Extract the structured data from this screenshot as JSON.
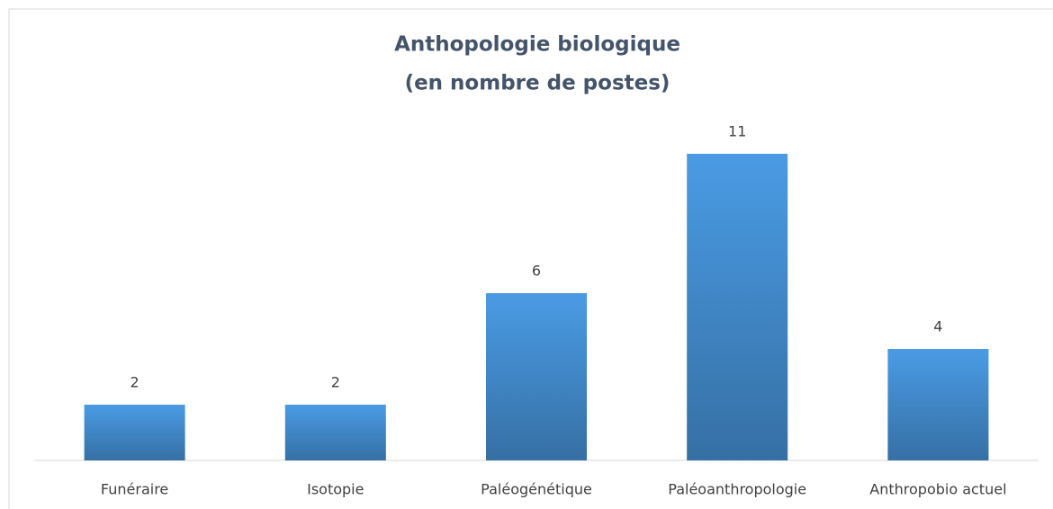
{
  "chart_data": {
    "type": "bar",
    "title": [
      "Anthopologie biologique",
      "(en nombre de postes)"
    ],
    "categories": [
      "Funéraire",
      "Isotopie",
      "Paléogénétique",
      "Paléoanthropologie",
      "Anthropobio actuel"
    ],
    "values": [
      2,
      2,
      6,
      11,
      4
    ],
    "color": "#4a9be4",
    "ylim": [
      0,
      12
    ]
  }
}
